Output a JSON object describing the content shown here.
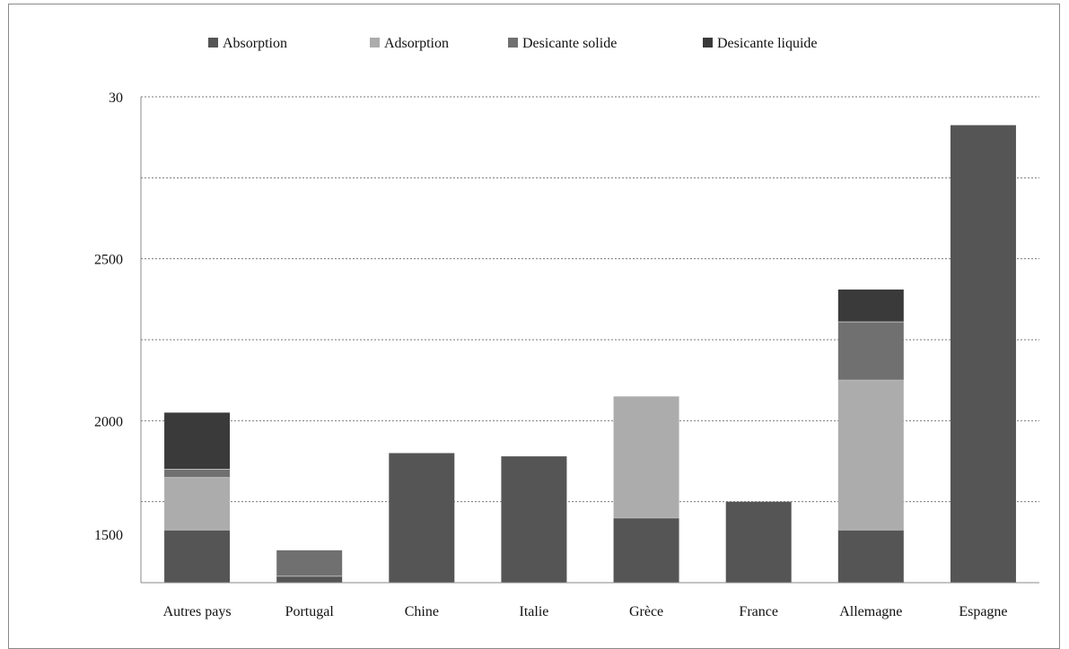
{
  "chart_data": {
    "type": "bar",
    "stacked": true,
    "categories": [
      "Autres pays",
      "Portugal",
      "Chine",
      "Italie",
      "Grèce",
      "France",
      "Allemagne",
      "Espagne"
    ],
    "series": [
      {
        "name": "Absorption",
        "color": "#555555",
        "values": [
          65,
          8,
          160,
          156,
          80,
          100,
          65,
          565
        ]
      },
      {
        "name": "Adsorption",
        "color": "#acacac",
        "values": [
          65,
          0,
          0,
          0,
          150,
          0,
          185,
          0
        ]
      },
      {
        "name": "Desicante solide",
        "color": "#707070",
        "values": [
          10,
          32,
          0,
          0,
          0,
          0,
          72,
          0
        ]
      },
      {
        "name": "Desicante liquide",
        "color": "#3a3a3a",
        "values": [
          70,
          0,
          0,
          0,
          0,
          0,
          40,
          0
        ]
      }
    ],
    "y_tick_labels": [
      {
        "value": 600,
        "label": "30"
      },
      {
        "value": 400,
        "label": "2500"
      },
      {
        "value": 200,
        "label": "2000"
      },
      {
        "value": 60,
        "label": "1500"
      }
    ],
    "gridlines": [
      100,
      200,
      300,
      400,
      500,
      600
    ],
    "ylim": [
      0,
      600
    ],
    "grid": true,
    "legend_position": "top"
  }
}
